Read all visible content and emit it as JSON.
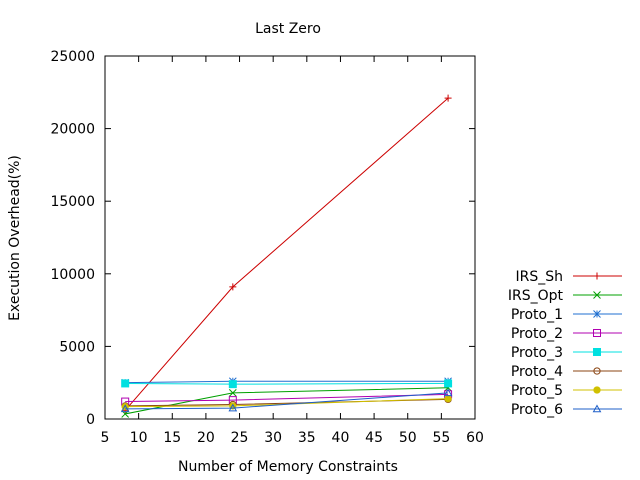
{
  "chart_data": {
    "type": "line",
    "title": "Last Zero",
    "xlabel": "Number of Memory Constraints",
    "ylabel": "Execution Overhead(%)",
    "xlim": [
      5,
      60
    ],
    "ylim": [
      0,
      25000
    ],
    "xticks": [
      5,
      10,
      15,
      20,
      25,
      30,
      35,
      40,
      45,
      50,
      55,
      60
    ],
    "yticks": [
      0,
      5000,
      10000,
      15000,
      20000,
      25000
    ],
    "x": [
      8,
      24,
      56
    ],
    "grid": false,
    "legend_position": "right",
    "series": [
      {
        "name": "IRS_Sh",
        "color": "#cc0000",
        "marker": "plus",
        "values": [
          600,
          9100,
          22100
        ]
      },
      {
        "name": "IRS_Opt",
        "color": "#00a000",
        "marker": "cross",
        "values": [
          350,
          1800,
          2150
        ]
      },
      {
        "name": "Proto_1",
        "color": "#1f6fd0",
        "marker": "star",
        "values": [
          2500,
          2600,
          2600
        ]
      },
      {
        "name": "Proto_2",
        "color": "#b000b0",
        "marker": "square",
        "values": [
          1200,
          1300,
          1700
        ]
      },
      {
        "name": "Proto_3",
        "color": "#00e0e0",
        "marker": "filled-square",
        "values": [
          2450,
          2400,
          2450
        ]
      },
      {
        "name": "Proto_4",
        "color": "#8b4513",
        "marker": "circle",
        "values": [
          900,
          1000,
          1350
        ]
      },
      {
        "name": "Proto_5",
        "color": "#d0c000",
        "marker": "filled-circle",
        "values": [
          850,
          900,
          1400
        ]
      },
      {
        "name": "Proto_6",
        "color": "#1e5fc8",
        "marker": "triangle",
        "values": [
          700,
          750,
          1800
        ]
      }
    ]
  }
}
